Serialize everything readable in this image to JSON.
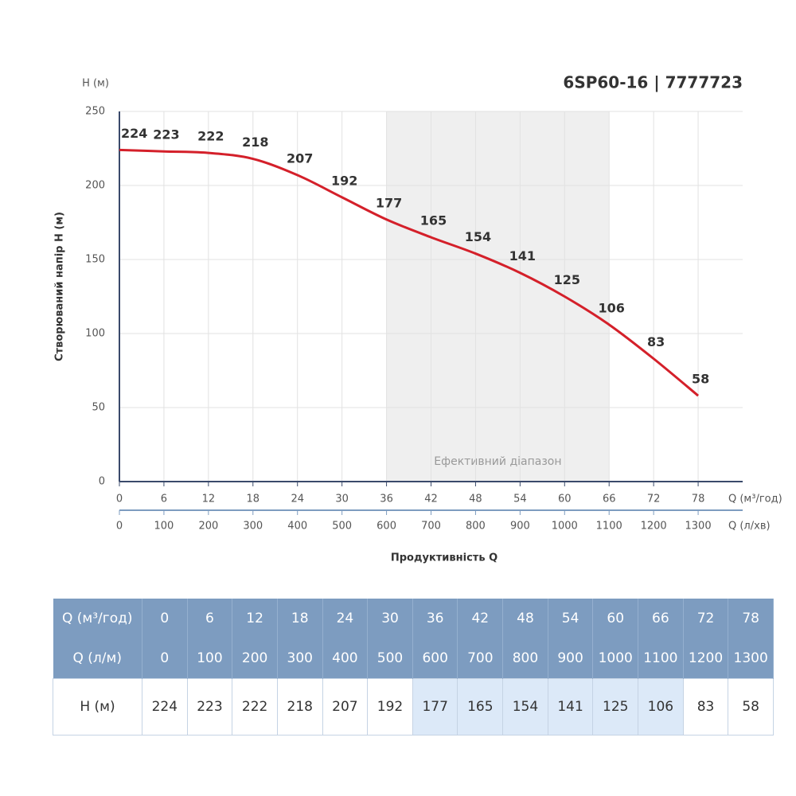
{
  "chart_data": {
    "type": "line",
    "title": "6SP60-16 | 7777723",
    "y_unit_label": "H (м)",
    "y_label": "Створюваний напір H (м)",
    "x_label": "Продуктивність Q",
    "x_unit_label": "Q (м³/год)",
    "x2_unit_label": "Q (л/хв)",
    "x": [
      0,
      6,
      12,
      18,
      24,
      30,
      36,
      42,
      48,
      54,
      60,
      66,
      72,
      78
    ],
    "series": [
      {
        "color": "#d4202a",
        "values": [
          224,
          223,
          222,
          218,
          207,
          192,
          177,
          165,
          154,
          141,
          125,
          106,
          83,
          58
        ]
      }
    ],
    "xlim": [
      0,
      84
    ],
    "xticks": [
      0,
      6,
      12,
      18,
      24,
      30,
      36,
      42,
      48,
      54,
      60,
      66,
      72,
      78
    ],
    "x2lim": [
      0,
      1400
    ],
    "x2ticks": [
      0,
      100,
      200,
      300,
      400,
      500,
      600,
      700,
      800,
      900,
      1000,
      1100,
      1200,
      1300
    ],
    "ylim": [
      0,
      250
    ],
    "yticks": [
      0,
      50,
      100,
      150,
      200,
      250
    ],
    "grid": true,
    "efficient_range": [
      36,
      66
    ],
    "annotation": "Ефективний діапазон"
  },
  "table": {
    "rows": [
      [
        "Q (м³/год)",
        0,
        6,
        12,
        18,
        24,
        30,
        36,
        42,
        48,
        54,
        60,
        66,
        72,
        78
      ],
      [
        "Q (л/м)",
        0,
        100,
        200,
        300,
        400,
        500,
        600,
        700,
        800,
        900,
        1000,
        1100,
        1200,
        1300
      ],
      [
        "H (м)",
        224,
        223,
        222,
        218,
        207,
        192,
        177,
        165,
        154,
        141,
        125,
        106,
        83,
        58
      ]
    ]
  }
}
